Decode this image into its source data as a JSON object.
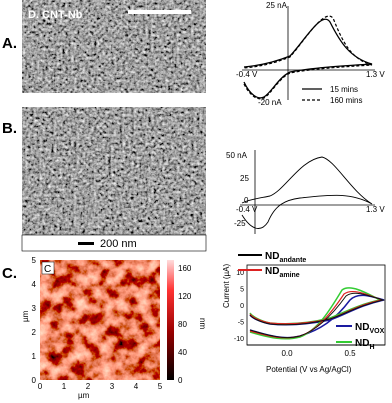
{
  "panel_a": {
    "label": "A.",
    "image_caption": "D. CNT-Nb",
    "cv": {
      "y_top": "25 nA",
      "y_bottom": "-20 nA",
      "x_left": "-0.4 V",
      "x_right": "1.3 V",
      "legend": [
        "15 mins",
        "160 mins"
      ]
    }
  },
  "panel_b": {
    "label": "B.",
    "scale_bar": "200 nm",
    "cv": {
      "yticks": [
        "50 nA",
        "25",
        "0",
        "-25"
      ],
      "x_left": "-0.4 V",
      "x_right": "1.3 V"
    }
  },
  "panel_c": {
    "label": "C.",
    "image_tag": "C",
    "afm": {
      "xticks": [
        "0",
        "1",
        "2",
        "3",
        "4",
        "5"
      ],
      "yticks": [
        "0",
        "1",
        "2",
        "3",
        "4",
        "5"
      ],
      "axis_unit": "µm",
      "colorbar_ticks": [
        "0",
        "40",
        "80",
        "120",
        "160"
      ],
      "colorbar_unit": "nm"
    },
    "cv": {
      "ylabel": "Current (µA)",
      "xlabel": "Potential (V vs Ag/AgCl)",
      "yticks": [
        "10",
        "5",
        "0",
        "-5",
        "-10"
      ],
      "xticks": [
        "0.0",
        "0.5"
      ],
      "legend": [
        {
          "text": "ND",
          "sub": "andante"
        },
        {
          "text": "ND",
          "sub": "amine"
        },
        {
          "text": "ND",
          "sub": "VOX"
        },
        {
          "text": "ND",
          "sub": "H"
        }
      ]
    }
  }
}
